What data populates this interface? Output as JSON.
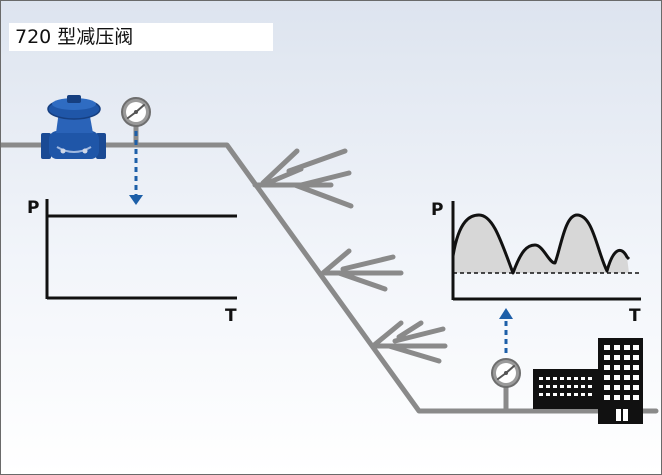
{
  "title": "720 型减压阀",
  "upstream_chart": {
    "y_label": "P",
    "x_label": "T",
    "pattern": "constant"
  },
  "downstream_chart": {
    "y_label": "P",
    "x_label": "T",
    "pattern": "fluctuating"
  },
  "icons": {
    "valve": "pressure-reducing-valve-icon",
    "gauge": "pressure-gauge-icon",
    "building": "building-icon",
    "arrow": "dashed-arrow-icon"
  },
  "colors": {
    "pipe": "#8a8a8a",
    "valve": "#1f56a8",
    "arrow": "#1d5fa8",
    "background_top": "#dde4ef",
    "background_bottom": "#ffffff",
    "curve_fill": "#d7d7d7",
    "building": "#111111"
  }
}
